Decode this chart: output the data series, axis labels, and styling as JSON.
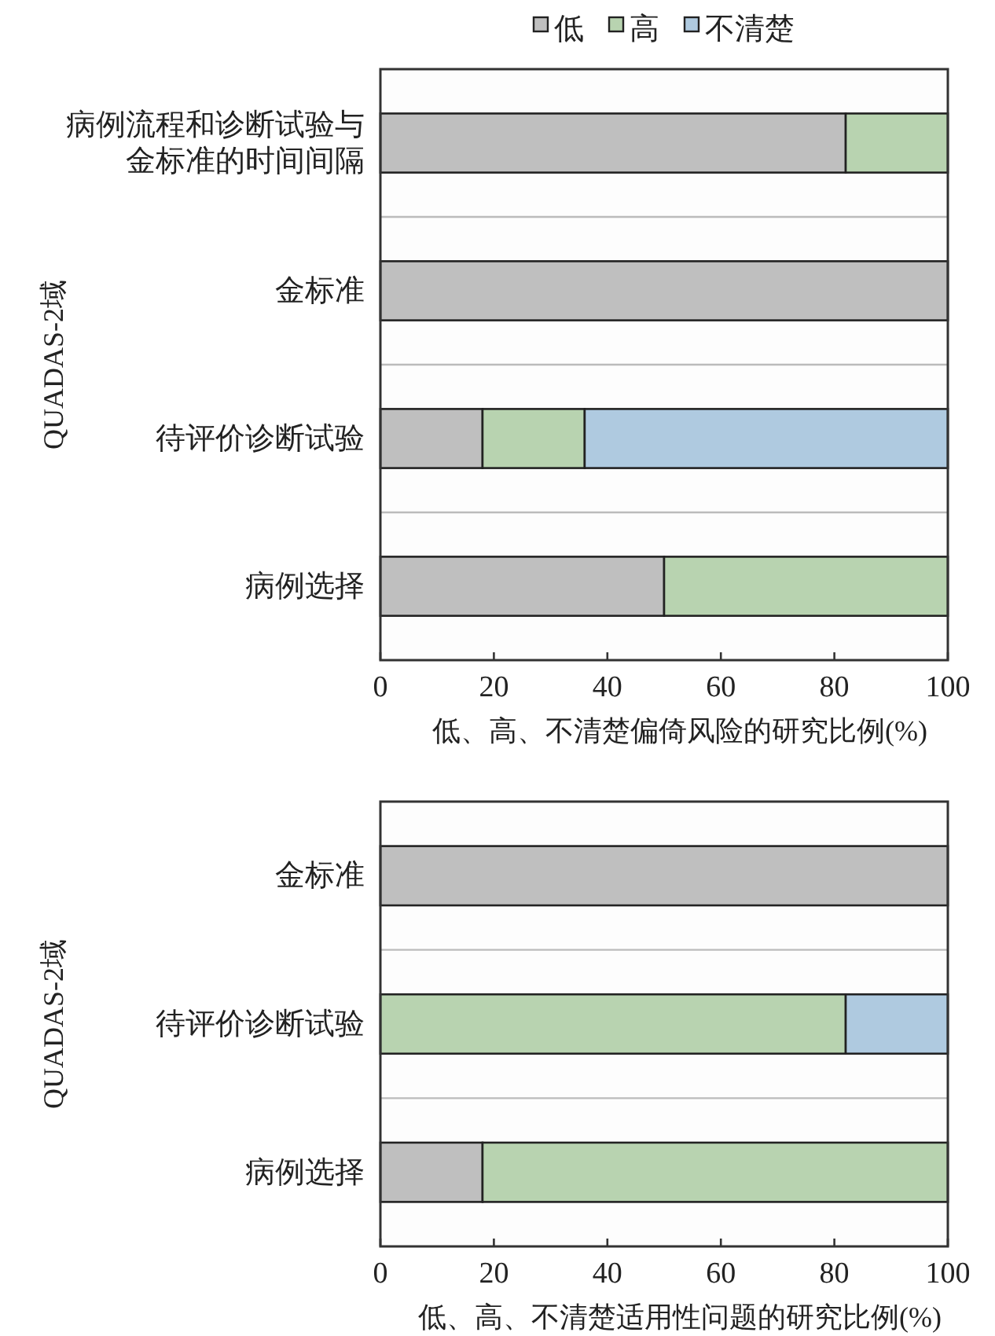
{
  "chart_data": [
    {
      "type": "bar",
      "orientation": "horizontal",
      "stacked": true,
      "legend": "top",
      "grid": "y",
      "categories": [
        "病例流程和诊断试验与金标准的时间间隔",
        "金标准",
        "待评价诊断试验",
        "病例选择"
      ],
      "series": [
        {
          "name": "低",
          "color": "#bfbfbf",
          "values": [
            82,
            100,
            18,
            50
          ]
        },
        {
          "name": "高",
          "color": "#b8d3b0",
          "values": [
            18,
            0,
            18,
            50
          ]
        },
        {
          "name": "不清楚",
          "color": "#afcae0",
          "values": [
            0,
            0,
            64,
            0
          ]
        }
      ],
      "xlim": [
        0,
        100
      ],
      "xticks": [
        0,
        20,
        40,
        60,
        80,
        100
      ],
      "xlabel": "低、高、不清楚偏倚风险的研究比例(%)",
      "ylabel": "QUADAS-2域"
    },
    {
      "type": "bar",
      "orientation": "horizontal",
      "stacked": true,
      "grid": "y",
      "categories": [
        "金标准",
        "待评价诊断试验",
        "病例选择"
      ],
      "series": [
        {
          "color": "#bfbfbf",
          "values": [
            100,
            0,
            18
          ]
        },
        {
          "color": "#b8d3b0",
          "values": [
            0,
            82,
            82
          ]
        },
        {
          "color": "#afcae0",
          "values": [
            0,
            18,
            0
          ]
        }
      ],
      "xlim": [
        0,
        100
      ],
      "xticks": [
        0,
        20,
        40,
        60,
        80,
        100
      ],
      "xlabel": "低、高、不清楚适用性问题的研究比例(%)",
      "ylabel": "QUADAS-2域"
    }
  ]
}
